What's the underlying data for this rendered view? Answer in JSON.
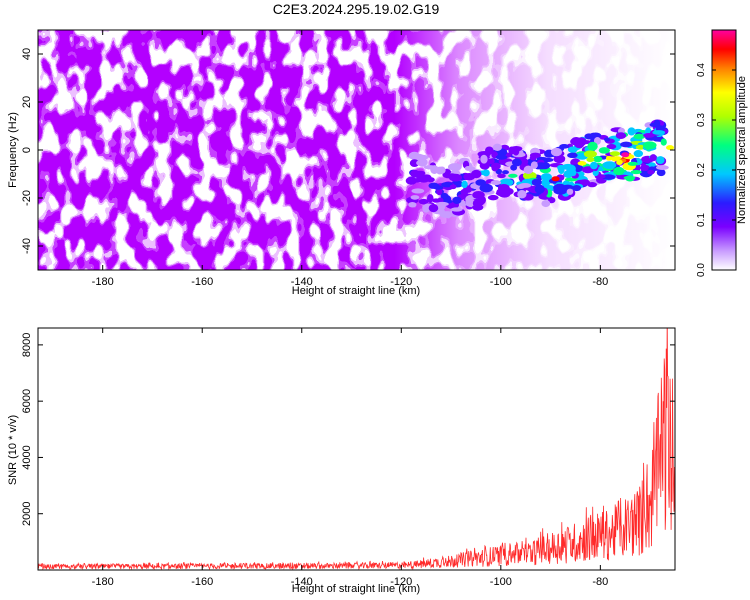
{
  "figure": {
    "title": "C2E3.2024.295.19.02.G19"
  },
  "colors": {
    "snr_line": "#ff2a2a",
    "colormap": [
      "#ffffff",
      "#c89bff",
      "#7a00ff",
      "#2b1cff",
      "#00c8ff",
      "#00ff80",
      "#b0ff00",
      "#ffff00",
      "#ff8000",
      "#ff0000",
      "#ff00a0"
    ]
  },
  "chart_data": [
    {
      "type": "heatmap",
      "xlabel": "Height of straight line (km)",
      "ylabel": "Frequency (Hz)",
      "xlim": [
        -193,
        -65
      ],
      "ylim": [
        -50,
        50
      ],
      "xticks": [
        -180,
        -160,
        -140,
        -120,
        -100,
        -80
      ],
      "yticks": [
        -40,
        -20,
        0,
        20,
        40
      ],
      "colorbar": {
        "label": "Normalized spectral amplitude",
        "range": [
          0.0,
          0.48
        ],
        "ticks": [
          "0.0",
          "0.1",
          "0.2",
          "0.3",
          "0.4"
        ]
      },
      "description_of_signal": {
        "noise_region_x": [
          -193,
          -108
        ],
        "signal_track": [
          {
            "x": -118,
            "y": -12,
            "amp": 0.12
          },
          {
            "x": -112,
            "y": -17,
            "amp": 0.14
          },
          {
            "x": -105,
            "y": -14,
            "amp": 0.16
          },
          {
            "x": -100,
            "y": -8,
            "amp": 0.2
          },
          {
            "x": -95,
            "y": -10,
            "amp": 0.22
          },
          {
            "x": -90,
            "y": -12,
            "amp": 0.3
          },
          {
            "x": -85,
            "y": -6,
            "amp": 0.28
          },
          {
            "x": -80,
            "y": -3,
            "amp": 0.3
          },
          {
            "x": -75,
            "y": -2,
            "amp": 0.42
          },
          {
            "x": -70,
            "y": 0,
            "amp": 0.3
          },
          {
            "x": -67,
            "y": 2,
            "amp": 0.25
          }
        ]
      }
    },
    {
      "type": "line",
      "xlabel": "Height of straight line (km)",
      "ylabel": "SNR (10 * v/v)",
      "xlim": [
        -193,
        -65
      ],
      "ylim": [
        0,
        8600
      ],
      "xticks": [
        -180,
        -160,
        -140,
        -120,
        -100,
        -80
      ],
      "yticks": [
        2000,
        4000,
        6000,
        8000
      ],
      "series": [
        {
          "envelope": [
            {
              "x": -193,
              "y": 200
            },
            {
              "x": -160,
              "y": 230
            },
            {
              "x": -130,
              "y": 250
            },
            {
              "x": -118,
              "y": 300
            },
            {
              "x": -110,
              "y": 550
            },
            {
              "x": -100,
              "y": 900
            },
            {
              "x": -95,
              "y": 1000
            },
            {
              "x": -90,
              "y": 1350
            },
            {
              "x": -85,
              "y": 1700
            },
            {
              "x": -82,
              "y": 2000
            },
            {
              "x": -78,
              "y": 2200
            },
            {
              "x": -75,
              "y": 2600
            },
            {
              "x": -72,
              "y": 3100
            },
            {
              "x": -70,
              "y": 4000
            },
            {
              "x": -68,
              "y": 6800
            },
            {
              "x": -67,
              "y": 8500
            },
            {
              "x": -66,
              "y": 7000
            },
            {
              "x": -65,
              "y": 4500
            }
          ]
        }
      ]
    }
  ]
}
